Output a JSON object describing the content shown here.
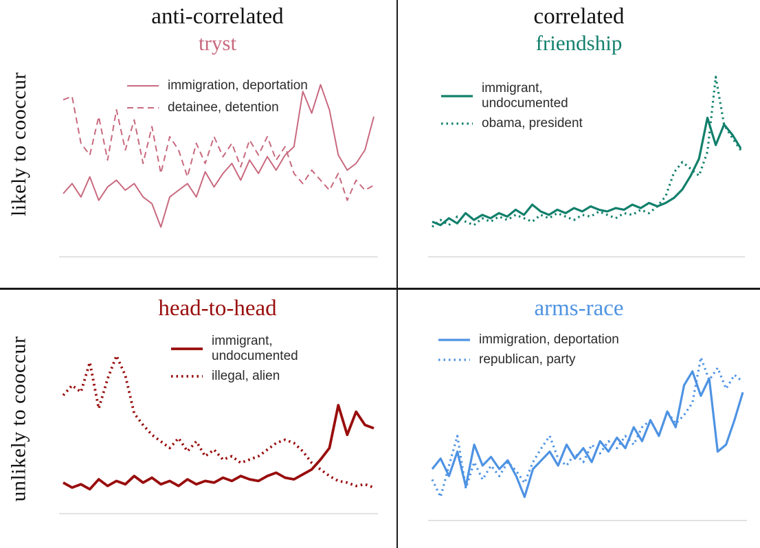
{
  "figure": {
    "row_labels": [
      "likely to cooccur",
      "unlikely to cooccur"
    ],
    "baseline_color": "#d9d9d9",
    "divider_color": "#1a1a1a"
  },
  "chart_data": [
    {
      "type": "line",
      "category": "anti-correlated",
      "pattern": "tryst",
      "row": "likely to cooccur",
      "color": "#c8697e",
      "xlabel": "",
      "ylabel": "",
      "ylim": [
        0,
        1
      ],
      "axes": {
        "visible": false,
        "baseline": true
      },
      "legend_position": "top-left-inside",
      "series": [
        {
          "name": "immigration, deportation",
          "line_style": "solid",
          "stroke_width": 2,
          "values": [
            0.32,
            0.38,
            0.3,
            0.42,
            0.28,
            0.36,
            0.4,
            0.34,
            0.38,
            0.3,
            0.26,
            0.12,
            0.3,
            0.34,
            0.38,
            0.3,
            0.45,
            0.36,
            0.44,
            0.5,
            0.4,
            0.52,
            0.44,
            0.54,
            0.46,
            0.55,
            0.6,
            0.93,
            0.8,
            0.97,
            0.82,
            0.55,
            0.46,
            0.5,
            0.58,
            0.78
          ]
        },
        {
          "name": "detainee, detention",
          "line_style": "dashed",
          "stroke_width": 2,
          "values": [
            0.88,
            0.9,
            0.62,
            0.55,
            0.78,
            0.52,
            0.82,
            0.58,
            0.76,
            0.5,
            0.72,
            0.44,
            0.66,
            0.58,
            0.42,
            0.62,
            0.5,
            0.66,
            0.54,
            0.62,
            0.48,
            0.64,
            0.55,
            0.66,
            0.52,
            0.6,
            0.44,
            0.38,
            0.46,
            0.4,
            0.34,
            0.44,
            0.28,
            0.4,
            0.34,
            0.37
          ]
        }
      ]
    },
    {
      "type": "line",
      "category": "correlated",
      "pattern": "friendship",
      "row": "likely to cooccur",
      "color": "#12806c",
      "xlabel": "",
      "ylabel": "",
      "ylim": [
        0,
        1
      ],
      "axes": {
        "visible": false,
        "baseline": true
      },
      "legend_position": "top-left-inside",
      "series": [
        {
          "name": "immigrant,\nundocumented",
          "line_style": "solid",
          "stroke_width": 3.2,
          "values": [
            0.15,
            0.13,
            0.17,
            0.14,
            0.2,
            0.16,
            0.19,
            0.17,
            0.2,
            0.18,
            0.22,
            0.19,
            0.25,
            0.21,
            0.19,
            0.22,
            0.2,
            0.23,
            0.21,
            0.24,
            0.22,
            0.21,
            0.23,
            0.22,
            0.25,
            0.23,
            0.26,
            0.24,
            0.26,
            0.29,
            0.34,
            0.42,
            0.52,
            0.76,
            0.6,
            0.72,
            0.66,
            0.58
          ]
        },
        {
          "name": "obama, president",
          "line_style": "dotted",
          "stroke_width": 3.2,
          "values": [
            0.12,
            0.16,
            0.13,
            0.18,
            0.15,
            0.13,
            0.17,
            0.15,
            0.18,
            0.16,
            0.19,
            0.17,
            0.15,
            0.19,
            0.17,
            0.2,
            0.18,
            0.16,
            0.19,
            0.18,
            0.21,
            0.19,
            0.17,
            0.2,
            0.19,
            0.22,
            0.2,
            0.24,
            0.3,
            0.44,
            0.5,
            0.46,
            0.42,
            0.56,
            1.0,
            0.72,
            0.64,
            0.57
          ]
        }
      ]
    },
    {
      "type": "line",
      "category": "",
      "pattern": "head-to-head",
      "row": "unlikely to cooccur",
      "color": "#990d0d",
      "xlabel": "",
      "ylabel": "",
      "ylim": [
        0,
        1
      ],
      "axes": {
        "visible": false,
        "baseline": true
      },
      "legend_position": "top-center-inside",
      "series": [
        {
          "name": "immigrant,\nundocumented",
          "line_style": "solid",
          "stroke_width": 3.8,
          "values": [
            0.13,
            0.1,
            0.12,
            0.09,
            0.15,
            0.11,
            0.14,
            0.12,
            0.17,
            0.13,
            0.16,
            0.12,
            0.14,
            0.11,
            0.15,
            0.12,
            0.14,
            0.13,
            0.16,
            0.14,
            0.17,
            0.15,
            0.14,
            0.17,
            0.19,
            0.16,
            0.15,
            0.18,
            0.21,
            0.27,
            0.34,
            0.6,
            0.42,
            0.56,
            0.48,
            0.46
          ]
        },
        {
          "name": "illegal, alien",
          "line_style": "dotted",
          "stroke_width": 3.8,
          "values": [
            0.66,
            0.72,
            0.68,
            0.86,
            0.58,
            0.76,
            0.9,
            0.78,
            0.55,
            0.48,
            0.42,
            0.38,
            0.34,
            0.4,
            0.32,
            0.38,
            0.29,
            0.33,
            0.27,
            0.29,
            0.25,
            0.27,
            0.29,
            0.33,
            0.37,
            0.39,
            0.37,
            0.32,
            0.25,
            0.21,
            0.17,
            0.14,
            0.13,
            0.11,
            0.12,
            0.1
          ]
        }
      ]
    },
    {
      "type": "line",
      "category": "",
      "pattern": "arms-race",
      "row": "unlikely to cooccur",
      "color": "#4e93e3",
      "xlabel": "",
      "ylabel": "",
      "ylim": [
        0,
        1
      ],
      "axes": {
        "visible": false,
        "baseline": true
      },
      "legend_position": "top-left-inside",
      "series": [
        {
          "name": "immigration, deportation",
          "line_style": "solid",
          "stroke_width": 3.2,
          "values": [
            0.24,
            0.3,
            0.2,
            0.34,
            0.14,
            0.38,
            0.26,
            0.31,
            0.24,
            0.29,
            0.2,
            0.08,
            0.24,
            0.29,
            0.34,
            0.26,
            0.38,
            0.3,
            0.36,
            0.28,
            0.4,
            0.34,
            0.42,
            0.36,
            0.48,
            0.4,
            0.52,
            0.43,
            0.57,
            0.48,
            0.72,
            0.8,
            0.66,
            0.76,
            0.34,
            0.38,
            0.52,
            0.68
          ]
        },
        {
          "name": "republican, party",
          "line_style": "dotted",
          "stroke_width": 3.2,
          "values": [
            0.18,
            0.08,
            0.26,
            0.43,
            0.13,
            0.28,
            0.18,
            0.26,
            0.2,
            0.28,
            0.23,
            0.16,
            0.28,
            0.36,
            0.43,
            0.3,
            0.26,
            0.33,
            0.28,
            0.38,
            0.33,
            0.4,
            0.36,
            0.43,
            0.38,
            0.48,
            0.52,
            0.43,
            0.57,
            0.5,
            0.55,
            0.62,
            0.88,
            0.75,
            0.82,
            0.7,
            0.78,
            0.74
          ]
        }
      ]
    }
  ]
}
